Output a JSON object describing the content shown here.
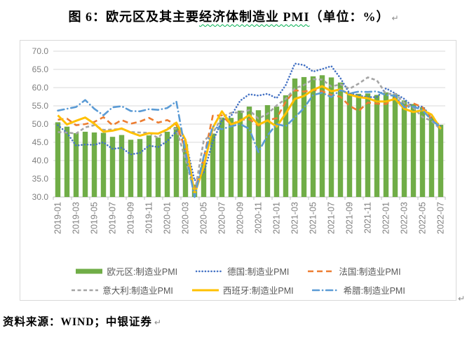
{
  "title": {
    "prefix": "图 6：欧元区及其主要",
    "wavy": "经济体制造业 PMI",
    "suffix": "（单位：%）"
  },
  "marks": {
    "para": "↵"
  },
  "source": {
    "text": "资料来源：WIND；中银证券"
  },
  "colors": {
    "frame_border": "#D9D9D9",
    "grid": "#D9D9D9",
    "axis": "#BFBFBF",
    "axis_label": "#7F7F7F",
    "legend_text": "#595959",
    "wavy_underline": "#00B050"
  },
  "chart_data": {
    "type": "combo",
    "title": "",
    "xlabel": "",
    "ylabel": "",
    "ylim": [
      30,
      70
    ],
    "ytick_step": 5,
    "y_tick_labels": [
      "30.0",
      "35.0",
      "40.0",
      "45.0",
      "50.0",
      "55.0",
      "60.0",
      "65.0",
      "70.0"
    ],
    "grid": "horizontal",
    "legend_position": "bottom",
    "x_tick_interval": 2,
    "categories": [
      "2019-01",
      "2019-02",
      "2019-03",
      "2019-04",
      "2019-05",
      "2019-06",
      "2019-07",
      "2019-08",
      "2019-09",
      "2019-10",
      "2019-11",
      "2019-12",
      "2020-01",
      "2020-02",
      "2020-03",
      "2020-04",
      "2020-05",
      "2020-06",
      "2020-07",
      "2020-08",
      "2020-09",
      "2020-10",
      "2020-11",
      "2020-12",
      "2021-01",
      "2021-02",
      "2021-03",
      "2021-04",
      "2021-05",
      "2021-06",
      "2021-07",
      "2021-08",
      "2021-09",
      "2021-10",
      "2021-11",
      "2021-12",
      "2022-01",
      "2022-02",
      "2022-03",
      "2022-04",
      "2022-05",
      "2022-06",
      "2022-07"
    ],
    "series": [
      {
        "name": "欧元区:制造业PMI",
        "type": "bar",
        "dash": "solid",
        "color": "#70AD47",
        "values": [
          50.5,
          49.3,
          47.5,
          47.9,
          47.7,
          47.6,
          46.5,
          47.0,
          45.7,
          45.9,
          46.9,
          46.3,
          47.9,
          49.2,
          44.5,
          33.4,
          39.4,
          47.4,
          51.8,
          51.7,
          53.7,
          54.8,
          53.8,
          55.2,
          54.8,
          57.9,
          62.5,
          62.9,
          63.1,
          63.4,
          62.8,
          61.4,
          58.6,
          58.3,
          58.4,
          58.0,
          58.7,
          58.2,
          56.5,
          55.5,
          54.6,
          52.1,
          49.8
        ]
      },
      {
        "name": "德国:制造业PMI",
        "type": "line",
        "dash": "dot",
        "color": "#4472C4",
        "values": [
          49.7,
          47.6,
          44.1,
          44.4,
          44.3,
          45.0,
          43.2,
          43.5,
          41.7,
          42.1,
          44.1,
          43.7,
          45.3,
          48.0,
          45.4,
          34.5,
          36.6,
          45.2,
          51.0,
          52.2,
          56.4,
          58.2,
          57.8,
          58.3,
          57.1,
          60.7,
          66.6,
          66.2,
          64.4,
          65.1,
          65.9,
          62.6,
          58.4,
          57.8,
          57.4,
          57.4,
          59.8,
          58.4,
          56.9,
          54.6,
          54.8,
          52.0,
          49.3
        ]
      },
      {
        "name": "法国:制造业PMI",
        "type": "line",
        "dash": "dash",
        "color": "#ED7D31",
        "values": [
          51.2,
          51.5,
          49.7,
          50.0,
          50.6,
          51.9,
          49.7,
          51.1,
          50.1,
          50.7,
          51.7,
          50.4,
          51.1,
          49.8,
          43.2,
          31.5,
          40.6,
          52.3,
          52.4,
          49.8,
          51.2,
          51.3,
          49.6,
          51.1,
          51.6,
          56.1,
          59.3,
          58.9,
          59.4,
          59.0,
          58.0,
          57.5,
          55.0,
          53.6,
          55.9,
          55.6,
          55.5,
          57.2,
          54.7,
          55.7,
          54.6,
          51.4,
          49.5
        ]
      },
      {
        "name": "意大利:制造业PMI",
        "type": "line",
        "dash": "dash-small",
        "color": "#A5A5A5",
        "values": [
          47.8,
          47.7,
          47.4,
          49.1,
          49.7,
          48.4,
          48.5,
          48.7,
          47.8,
          47.7,
          47.6,
          46.2,
          48.9,
          48.7,
          40.3,
          31.1,
          45.4,
          47.5,
          51.9,
          53.1,
          53.2,
          53.8,
          51.5,
          52.8,
          55.1,
          56.9,
          59.8,
          60.7,
          62.3,
          62.2,
          60.3,
          60.9,
          59.7,
          61.1,
          62.8,
          62.0,
          58.3,
          58.3,
          55.8,
          54.5,
          51.9,
          50.9,
          48.5
        ]
      },
      {
        "name": "西班牙:制造业PMI",
        "type": "line",
        "dash": "solid",
        "color": "#FFC000",
        "values": [
          52.4,
          49.9,
          50.9,
          51.8,
          50.1,
          47.9,
          48.2,
          48.8,
          47.7,
          46.8,
          47.5,
          47.4,
          48.5,
          50.4,
          45.7,
          30.8,
          38.3,
          49.0,
          53.5,
          49.9,
          50.8,
          52.5,
          49.8,
          51.0,
          49.3,
          52.9,
          56.9,
          57.7,
          59.4,
          60.4,
          59.0,
          59.5,
          58.1,
          57.4,
          57.1,
          56.2,
          56.2,
          56.9,
          54.2,
          53.3,
          53.8,
          52.6,
          48.7
        ]
      },
      {
        "name": "希腊:制造业PMI",
        "type": "line",
        "dash": "dash-dot",
        "color": "#5B9BD5",
        "values": [
          53.7,
          54.2,
          54.7,
          56.6,
          54.2,
          52.4,
          54.6,
          54.9,
          53.6,
          53.5,
          54.1,
          53.9,
          54.4,
          56.2,
          42.5,
          29.5,
          41.1,
          49.4,
          48.6,
          49.4,
          50.0,
          48.7,
          42.3,
          46.9,
          50.0,
          49.4,
          51.8,
          54.4,
          58.0,
          58.6,
          57.4,
          59.3,
          58.4,
          58.9,
          58.8,
          59.0,
          57.9,
          57.8,
          54.6,
          54.8,
          53.8,
          51.1,
          49.1
        ]
      }
    ]
  }
}
